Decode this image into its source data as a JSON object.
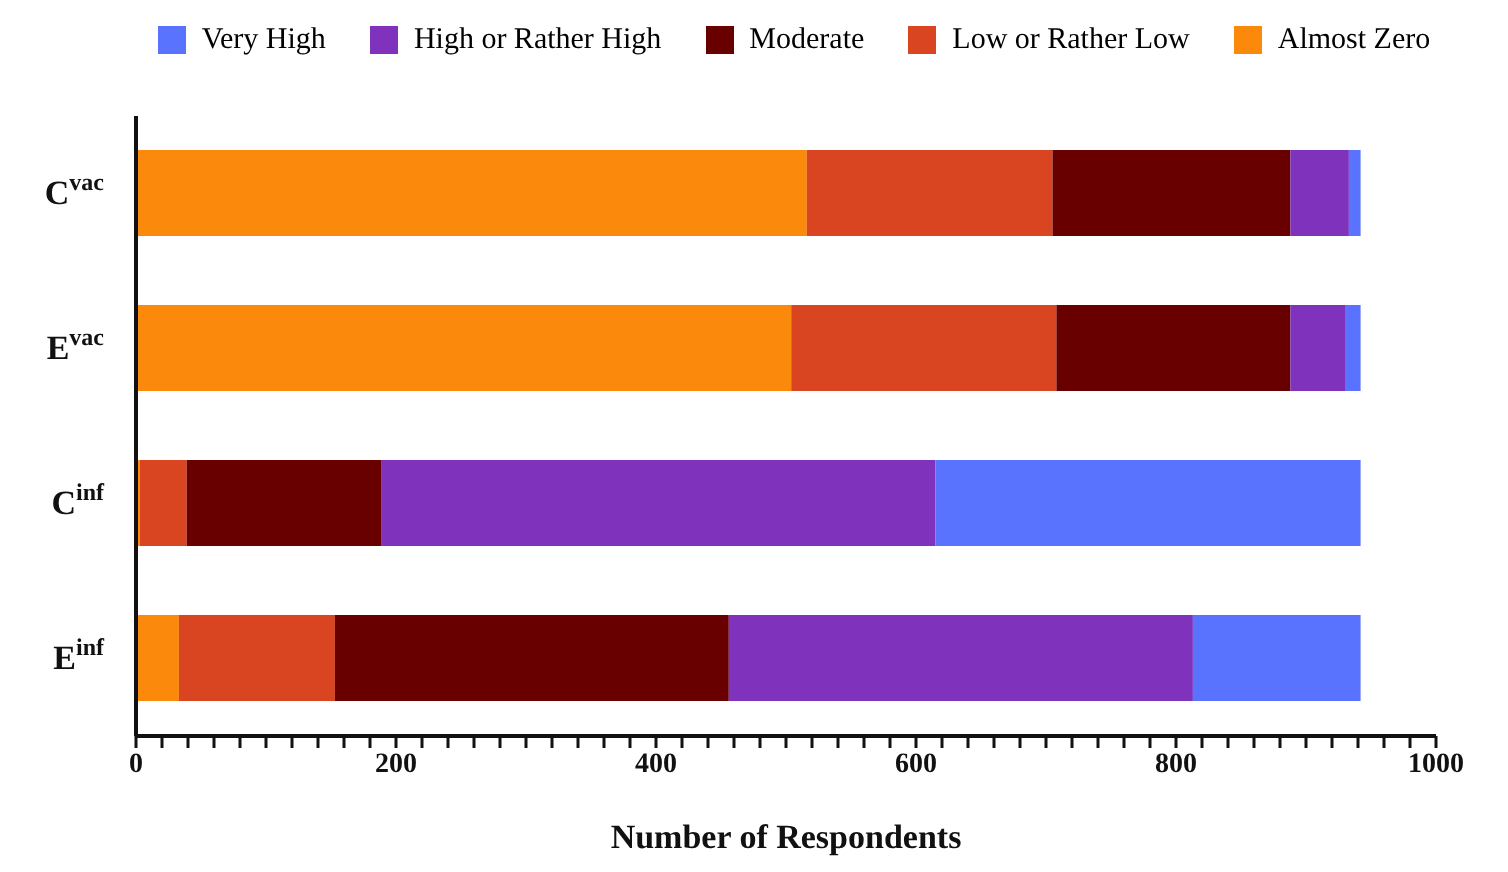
{
  "chart_data": {
    "type": "bar",
    "orientation": "horizontal",
    "stacked": true,
    "categories": [
      "C$^{vac}$",
      "E$^{vac}$",
      "C$^{inf}$",
      "E$^{inf}$"
    ],
    "series": [
      {
        "name": "Almost Zero",
        "color": "#fb8a0c",
        "values": [
          516,
          504,
          3,
          33
        ]
      },
      {
        "name": "Low or Rather Low",
        "color": "#d94520",
        "values": [
          189,
          204,
          36,
          120
        ]
      },
      {
        "name": "Moderate",
        "color": "#690000",
        "values": [
          183,
          180,
          150,
          303
        ]
      },
      {
        "name": "High or Rather High",
        "color": "#7f33bd",
        "values": [
          45,
          42,
          426,
          357
        ]
      },
      {
        "name": "Very High",
        "color": "#5a73fe",
        "values": [
          9,
          12,
          327,
          129
        ]
      }
    ],
    "xlim": [
      0,
      1000
    ],
    "xticks": [
      0,
      {
        "value": 20,
        "label": null
      },
      {
        "value": 40,
        "label": null
      },
      {
        "value": 60,
        "label": null
      },
      {
        "value": 80,
        "label": null
      },
      {
        "value": 100,
        "label": null
      },
      {
        "value": 120,
        "label": null
      },
      {
        "value": 140,
        "label": null
      },
      {
        "value": 160,
        "label": null
      },
      {
        "value": 180,
        "label": null
      },
      200,
      {
        "value": 220,
        "label": null
      },
      {
        "value": 240,
        "label": null
      },
      {
        "value": 260,
        "label": null
      },
      {
        "value": 280,
        "label": null
      },
      {
        "value": 300,
        "label": null
      },
      {
        "value": 320,
        "label": null
      },
      {
        "value": 340,
        "label": null
      },
      {
        "value": 360,
        "label": null
      },
      {
        "value": 380,
        "label": null
      },
      400,
      {
        "value": 420,
        "label": null
      },
      {
        "value": 440,
        "label": null
      },
      {
        "value": 460,
        "label": null
      },
      {
        "value": 480,
        "label": null
      },
      {
        "value": 500,
        "label": null
      },
      {
        "value": 520,
        "label": null
      },
      {
        "value": 540,
        "label": null
      },
      {
        "value": 560,
        "label": null
      },
      {
        "value": 580,
        "label": null
      },
      600,
      {
        "value": 620,
        "label": null
      },
      {
        "value": 640,
        "label": null
      },
      {
        "value": 660,
        "label": null
      },
      {
        "value": 680,
        "label": null
      },
      {
        "value": 700,
        "label": null
      },
      {
        "value": 720,
        "label": null
      },
      {
        "value": 740,
        "label": null
      },
      {
        "value": 760,
        "label": null
      },
      {
        "value": 780,
        "label": null
      },
      800,
      {
        "value": 820,
        "label": null
      },
      {
        "value": 840,
        "label": null
      },
      {
        "value": 860,
        "label": null
      },
      {
        "value": 880,
        "label": null
      },
      {
        "value": 900,
        "label": null
      },
      {
        "value": 920,
        "label": null
      },
      {
        "value": 940,
        "label": null
      },
      {
        "value": 960,
        "label": null
      },
      {
        "value": 980,
        "label": null
      },
      1000
    ],
    "xlabel": "Number of Respondents",
    "legend": "top",
    "grid": false
  }
}
